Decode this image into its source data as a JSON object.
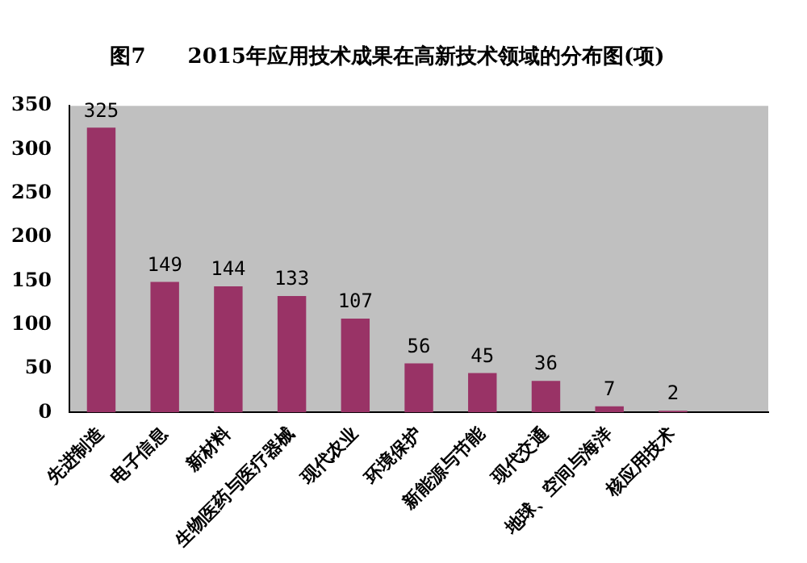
{
  "chart_data": {
    "type": "bar",
    "title": "图7　　2015年应用技术成果在高新技术领域的分布图(项)",
    "categories": [
      "先进制造",
      "电子信息",
      "新材料",
      "生物医药与医疗器械",
      "现代农业",
      "环境保护",
      "新能源与节能",
      "现代交通",
      "地球、空间与海洋",
      "核应用技术",
      null
    ],
    "values": [
      325,
      149,
      144,
      133,
      107,
      56,
      45,
      36,
      7,
      2,
      null
    ],
    "color": "#993366",
    "ylim": [
      0,
      350
    ],
    "yticks": [
      0,
      50,
      100,
      150,
      200,
      250,
      300,
      350
    ],
    "data_labels": true,
    "grid": false,
    "legend": false
  }
}
